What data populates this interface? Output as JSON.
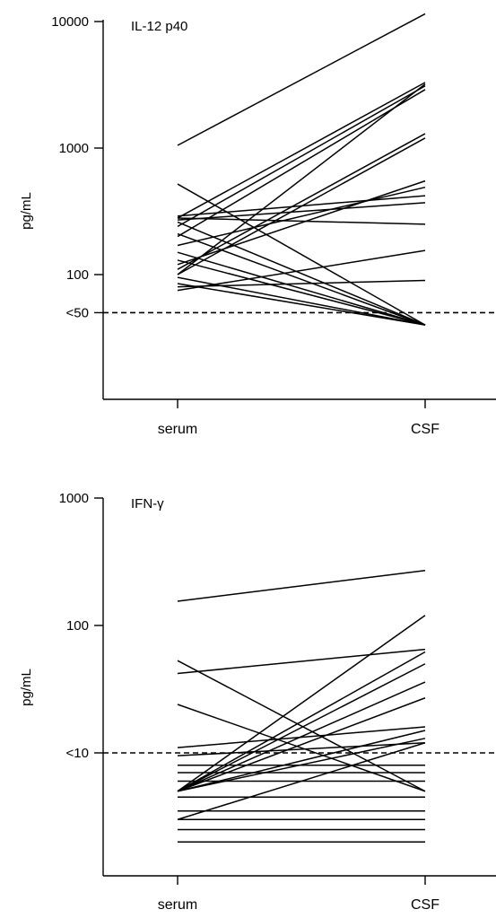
{
  "chart_data": [
    {
      "type": "line",
      "title": "IL-12 p40",
      "ylabel": "pg/mL",
      "yscale": "log",
      "ylim": [
        18,
        11500
      ],
      "categories": [
        "serum",
        "CSF"
      ],
      "yticks": [
        {
          "value": 10000,
          "label": "10000"
        },
        {
          "value": 1000,
          "label": "1000"
        },
        {
          "value": 100,
          "label": "100"
        },
        {
          "value": 50,
          "label": "<50"
        }
      ],
      "threshold": {
        "value": 50,
        "label": "<50",
        "style": "dashed"
      },
      "series": [
        {
          "values": [
            1050,
            11500
          ]
        },
        {
          "values": [
            280,
            3300
          ]
        },
        {
          "values": [
            240,
            3100
          ]
        },
        {
          "values": [
            200,
            2900
          ]
        },
        {
          "values": [
            100,
            3200
          ]
        },
        {
          "values": [
            110,
            1300
          ]
        },
        {
          "values": [
            100,
            1200
          ]
        },
        {
          "values": [
            120,
            550
          ]
        },
        {
          "values": [
            170,
            490
          ]
        },
        {
          "values": [
            290,
            420
          ]
        },
        {
          "values": [
            270,
            370
          ]
        },
        {
          "values": [
            280,
            250
          ]
        },
        {
          "values": [
            75,
            155
          ]
        },
        {
          "values": [
            80,
            90
          ]
        },
        {
          "values": [
            520,
            40
          ]
        },
        {
          "values": [
            260,
            40
          ]
        },
        {
          "values": [
            210,
            40
          ]
        },
        {
          "values": [
            150,
            40
          ]
        },
        {
          "values": [
            130,
            40
          ]
        },
        {
          "values": [
            95,
            40
          ]
        },
        {
          "values": [
            85,
            40
          ]
        }
      ]
    },
    {
      "type": "line",
      "title": "IFN-γ",
      "ylabel": "pg/mL",
      "yscale": "log",
      "ylim": [
        0.35,
        1000
      ],
      "categories": [
        "serum",
        "CSF"
      ],
      "yticks": [
        {
          "value": 1000,
          "label": "1000"
        },
        {
          "value": 100,
          "label": "100"
        },
        {
          "value": 10,
          "label": "<10"
        }
      ],
      "threshold": {
        "value": 10,
        "label": "<10",
        "style": "dashed"
      },
      "series": [
        {
          "values": [
            155,
            270
          ]
        },
        {
          "values": [
            42,
            65
          ]
        },
        {
          "values": [
            53,
            5
          ]
        },
        {
          "values": [
            24,
            5
          ]
        },
        {
          "values": [
            11,
            16
          ]
        },
        {
          "values": [
            9.5,
            12
          ]
        },
        {
          "values": [
            8,
            8
          ]
        },
        {
          "values": [
            7,
            7
          ]
        },
        {
          "values": [
            5,
            120
          ]
        },
        {
          "values": [
            5,
            62
          ]
        },
        {
          "values": [
            5,
            50
          ]
        },
        {
          "values": [
            5,
            36
          ]
        },
        {
          "values": [
            5,
            27
          ]
        },
        {
          "values": [
            5,
            15
          ]
        },
        {
          "values": [
            5,
            13
          ]
        },
        {
          "values": [
            6,
            6
          ]
        },
        {
          "values": [
            4.5,
            4.5
          ]
        },
        {
          "values": [
            3.5,
            3.5
          ]
        },
        {
          "values": [
            3,
            3
          ]
        },
        {
          "values": [
            2.5,
            2.5
          ]
        },
        {
          "values": [
            2,
            2
          ]
        },
        {
          "values": [
            3,
            12
          ]
        }
      ]
    }
  ]
}
